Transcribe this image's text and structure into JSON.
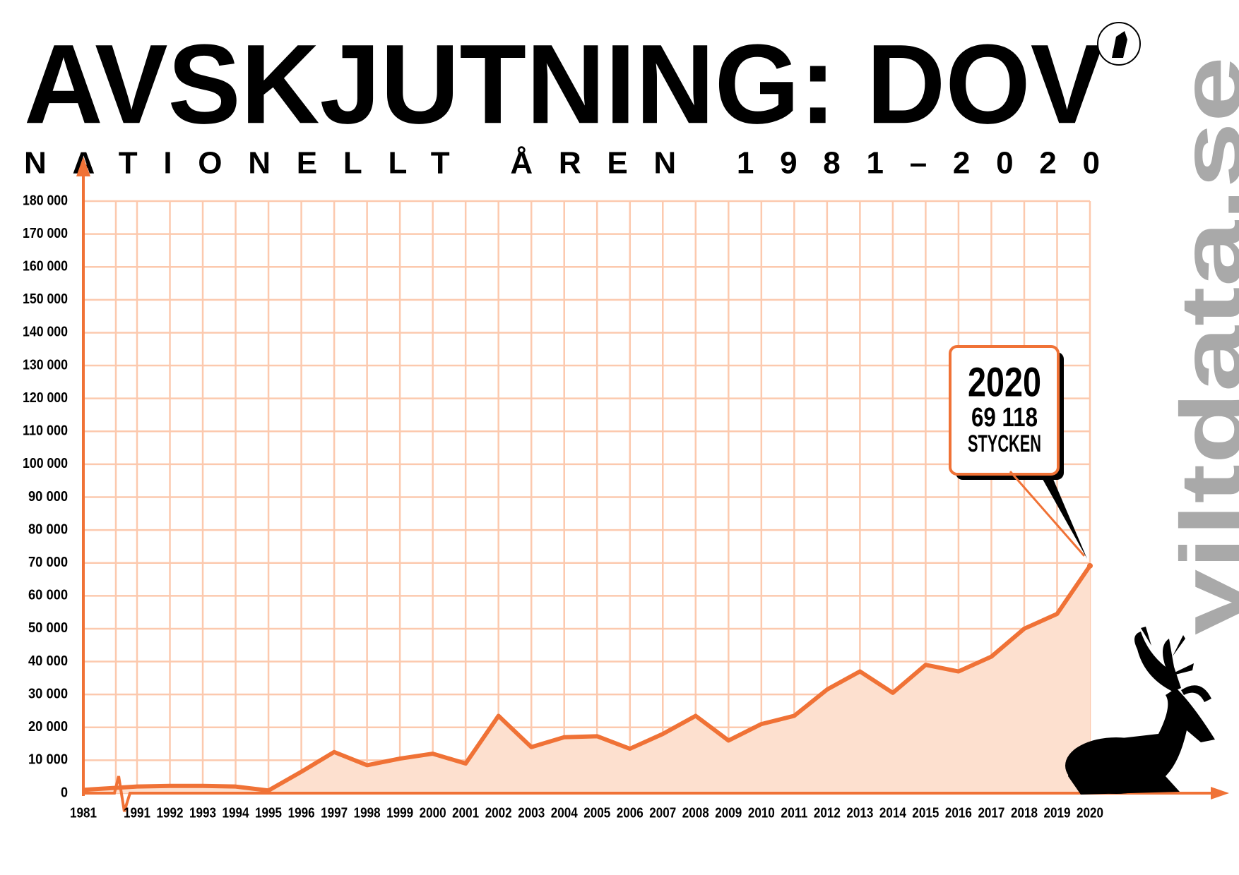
{
  "chart_data": {
    "type": "area",
    "title": "AVSKJUTNING: DOV",
    "subtitle": "NATIONELLT ÅREN 1981–2020",
    "source": "viltdata.se",
    "categories": [
      "1981",
      "1991",
      "1992",
      "1993",
      "1994",
      "1995",
      "1996",
      "1997",
      "1998",
      "1999",
      "2000",
      "2001",
      "2002",
      "2003",
      "2004",
      "2005",
      "2006",
      "2007",
      "2008",
      "2009",
      "2010",
      "2011",
      "2012",
      "2013",
      "2014",
      "2015",
      "2016",
      "2017",
      "2018",
      "2019",
      "2020"
    ],
    "series": [
      {
        "name": "Dov",
        "color": "#f07236",
        "values": [
          1000,
          2000,
          2200,
          2200,
          2000,
          800,
          6500,
          12500,
          8500,
          10500,
          12000,
          9000,
          23500,
          14000,
          17000,
          17300,
          13500,
          18000,
          23500,
          16000,
          21000,
          23500,
          31500,
          37000,
          30500,
          39000,
          37000,
          41500,
          50000,
          54500,
          69118
        ],
        "value_labels": [
          null,
          null,
          null,
          null,
          null,
          null,
          null,
          null,
          null,
          null,
          null,
          null,
          null,
          null,
          null,
          null,
          null,
          null,
          null,
          null,
          null,
          null,
          null,
          null,
          null,
          null,
          null,
          null,
          null,
          null,
          "69 118"
        ]
      }
    ],
    "value_unit": "STYCKEN",
    "ylim": [
      0,
      180000
    ],
    "yticks": [
      0,
      {
        "value": 10000,
        "label": "10 000"
      },
      {
        "value": 20000,
        "label": "20 000"
      },
      {
        "value": 30000,
        "label": "30 000"
      },
      {
        "value": 40000,
        "label": "40 000"
      },
      {
        "value": 50000,
        "label": "50 000"
      },
      {
        "value": 60000,
        "label": "60 000"
      },
      {
        "value": 70000,
        "label": "70 000"
      },
      {
        "value": 80000,
        "label": "80 000"
      },
      {
        "value": 90000,
        "label": "90 000"
      },
      {
        "value": 100000,
        "label": "100 000"
      },
      {
        "value": 110000,
        "label": "110 000"
      },
      {
        "value": 120000,
        "label": "120 000"
      },
      {
        "value": 130000,
        "label": "130 000"
      },
      {
        "value": 140000,
        "label": "140 000"
      },
      {
        "value": 150000,
        "label": "150 000"
      },
      {
        "value": 160000,
        "label": "160 000"
      },
      {
        "value": 170000,
        "label": "170 000"
      },
      {
        "value": 180000,
        "label": "180 000"
      }
    ],
    "grid": true
  }
}
